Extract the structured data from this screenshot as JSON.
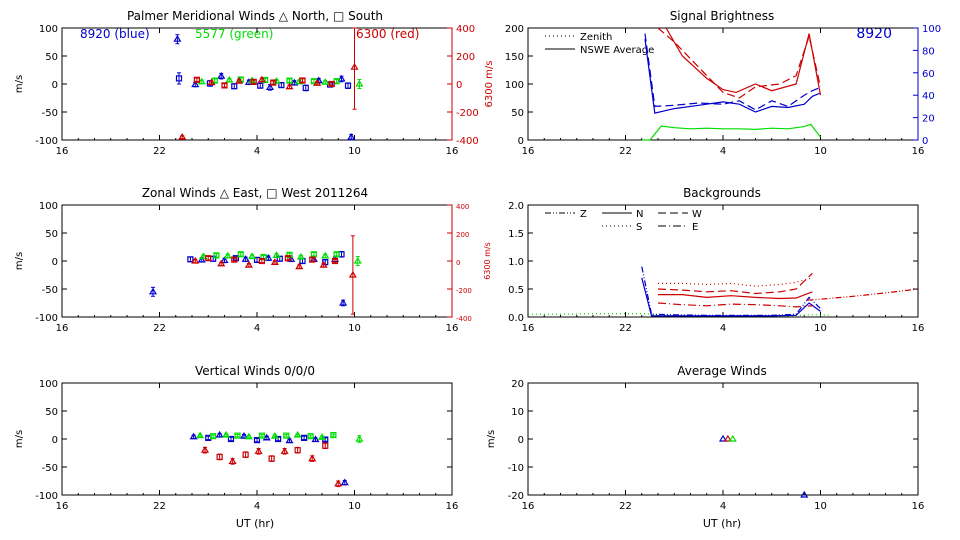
{
  "colors": {
    "blue": "#0000cc",
    "green": "#00dd00",
    "red": "#cc0000",
    "axis": "#000000"
  },
  "chart_data": [
    {
      "id": "meridional",
      "type": "scatter",
      "title": "Palmer Meridional Winds △ North, □ South",
      "ylabel": "m/s",
      "ylabel_right": "6300 m/s",
      "ylim": [
        -100,
        100
      ],
      "ylim_right": [
        -400,
        400
      ],
      "yticks": [
        -100,
        -50,
        0,
        50,
        100
      ],
      "yticks_right": [
        -400,
        -200,
        0,
        200,
        400
      ],
      "xlim": [
        16,
        40
      ],
      "xticks": [
        16,
        22,
        28,
        34,
        40
      ],
      "xtick_labels": [
        "16",
        "22",
        "4",
        "10",
        "16"
      ],
      "legend": [
        {
          "text": "8920 (blue)",
          "color": "blue"
        },
        {
          "text": "5577 (green)",
          "color": "green"
        },
        {
          "text": "6300 (red)",
          "color": "red"
        }
      ],
      "series": [
        {
          "name": "8920",
          "color": "blue",
          "x": [
            23.1,
            23.2,
            24.2,
            25.1,
            25.8,
            26.6,
            27.5,
            28.2,
            28.8,
            29.5,
            30.3,
            31.0,
            31.8,
            32.5,
            33.2,
            33.6,
            33.8
          ],
          "y": [
            80,
            10,
            -1,
            1,
            14,
            -4,
            3,
            -3,
            -6,
            -2,
            2,
            -7,
            6,
            -1,
            9,
            -3,
            -95
          ],
          "err": [
            8,
            10,
            4,
            5,
            5,
            4,
            4,
            4,
            5,
            4,
            4,
            5,
            4,
            4,
            5,
            5,
            5
          ]
        },
        {
          "name": "5577",
          "color": "green",
          "x": [
            24.6,
            25.4,
            26.3,
            27.0,
            27.7,
            28.5,
            29.2,
            30.0,
            30.6,
            31.5,
            32.2,
            32.9,
            34.3
          ],
          "y": [
            4,
            6,
            7,
            8,
            6,
            7,
            5,
            6,
            4,
            5,
            3,
            5,
            0
          ],
          "err": [
            3,
            3,
            3,
            3,
            3,
            3,
            3,
            3,
            3,
            3,
            3,
            3,
            8
          ]
        },
        {
          "name": "6300",
          "color": "red",
          "x": [
            23.4,
            24.3,
            25.2,
            26.0,
            26.9,
            27.8,
            28.3,
            29.0,
            30.0,
            30.8,
            31.7,
            32.6,
            34.0
          ],
          "y": [
            -380,
            30,
            10,
            -10,
            20,
            15,
            30,
            10,
            -20,
            25,
            5,
            0,
            120
          ],
          "err": [
            10,
            12,
            12,
            12,
            12,
            12,
            12,
            12,
            12,
            12,
            12,
            12,
            300
          ],
          "axis": "right"
        }
      ]
    },
    {
      "id": "zonal",
      "type": "scatter",
      "title": "Zonal Winds △ East, □ West 2011264",
      "ylabel": "m/s",
      "ylabel_right": "6300 m/s",
      "ylim": [
        -100,
        100
      ],
      "ylim_right": [
        -400,
        400
      ],
      "yticks": [
        -100,
        -50,
        0,
        50,
        100
      ],
      "yticks_right": [
        -400,
        -200,
        0,
        200,
        400
      ],
      "xlim": [
        16,
        40
      ],
      "xticks": [
        16,
        22,
        28,
        34,
        40
      ],
      "xtick_labels": [
        "16",
        "22",
        "4",
        "10",
        "16"
      ],
      "series": [
        {
          "name": "8920",
          "color": "blue",
          "x": [
            21.6,
            23.9,
            24.6,
            25.3,
            26.0,
            26.7,
            27.3,
            28.0,
            28.7,
            29.4,
            30.1,
            30.8,
            31.5,
            32.2,
            32.8,
            33.2,
            33.3
          ],
          "y": [
            -55,
            3,
            2,
            4,
            1,
            5,
            3,
            2,
            5,
            4,
            3,
            0,
            3,
            -2,
            3,
            12,
            -75
          ],
          "err": [
            8,
            4,
            4,
            4,
            4,
            4,
            4,
            4,
            4,
            4,
            4,
            4,
            4,
            4,
            4,
            5,
            5
          ]
        },
        {
          "name": "5577",
          "color": "green",
          "x": [
            24.7,
            25.5,
            26.2,
            27.0,
            27.7,
            28.4,
            29.2,
            30.0,
            30.7,
            31.5,
            32.2,
            32.9,
            34.2
          ],
          "y": [
            8,
            10,
            9,
            12,
            8,
            7,
            10,
            11,
            7,
            12,
            9,
            12,
            0
          ],
          "err": [
            3,
            3,
            3,
            3,
            3,
            3,
            3,
            3,
            3,
            3,
            3,
            3,
            8
          ]
        },
        {
          "name": "6300",
          "color": "red",
          "x": [
            24.2,
            25.0,
            25.8,
            26.6,
            27.5,
            28.3,
            29.1,
            29.9,
            30.6,
            31.4,
            32.1,
            32.8,
            33.9
          ],
          "y": [
            0,
            20,
            -20,
            10,
            -30,
            0,
            -10,
            20,
            -40,
            10,
            -30,
            0,
            -100
          ],
          "err": [
            12,
            12,
            12,
            12,
            12,
            12,
            12,
            12,
            12,
            12,
            12,
            12,
            280
          ],
          "axis": "right"
        }
      ]
    },
    {
      "id": "vertical",
      "type": "scatter",
      "title": "Vertical Winds 0/0/0",
      "ylabel": "m/s",
      "xlabel": "UT (hr)",
      "ylim": [
        -100,
        100
      ],
      "yticks": [
        -100,
        -50,
        0,
        50,
        100
      ],
      "xlim": [
        16,
        40
      ],
      "xticks": [
        16,
        22,
        28,
        34,
        40
      ],
      "xtick_labels": [
        "16",
        "22",
        "4",
        "10",
        "16"
      ],
      "series": [
        {
          "name": "8920",
          "color": "blue",
          "x": [
            24.1,
            25.0,
            25.7,
            26.4,
            27.2,
            28.0,
            28.6,
            29.3,
            30.0,
            30.9,
            31.6,
            32.2,
            33.4
          ],
          "y": [
            4,
            2,
            7,
            0,
            5,
            -2,
            2,
            0,
            -3,
            2,
            -1,
            -1,
            -78
          ],
          "err": [
            3,
            3,
            3,
            3,
            3,
            3,
            3,
            3,
            3,
            3,
            3,
            3,
            4
          ]
        },
        {
          "name": "5577",
          "color": "green",
          "x": [
            24.5,
            25.3,
            26.1,
            26.8,
            27.5,
            28.3,
            29.1,
            29.8,
            30.5,
            31.3,
            32.0,
            32.7,
            34.3
          ],
          "y": [
            6,
            5,
            7,
            6,
            4,
            6,
            5,
            6,
            7,
            5,
            3,
            7,
            0
          ],
          "err": [
            2,
            2,
            2,
            2,
            2,
            2,
            2,
            2,
            2,
            2,
            2,
            2,
            6
          ]
        },
        {
          "name": "6300",
          "color": "red",
          "x": [
            24.8,
            25.7,
            26.5,
            27.3,
            28.1,
            28.9,
            29.7,
            30.5,
            31.4,
            32.2,
            33.0
          ],
          "y": [
            -20,
            -32,
            -40,
            -28,
            -22,
            -35,
            -22,
            -20,
            -35,
            -12,
            -80
          ],
          "err": [
            5,
            5,
            5,
            5,
            5,
            5,
            5,
            5,
            5,
            5,
            5
          ]
        }
      ]
    },
    {
      "id": "brightness",
      "type": "line",
      "title": "Signal Brightness",
      "ylim": [
        0,
        200
      ],
      "ylim_right": [
        0,
        100
      ],
      "yticks": [
        0,
        50,
        100,
        150,
        200
      ],
      "yticks_right": [
        0,
        20,
        40,
        60,
        80,
        100
      ],
      "xlim": [
        16,
        40
      ],
      "xticks": [
        16,
        22,
        28,
        34,
        40
      ],
      "xtick_labels": [
        "16",
        "22",
        "4",
        "10",
        "16"
      ],
      "label_right": "8920",
      "legend": [
        {
          "text": "Zenith",
          "style": "dotted"
        },
        {
          "text": "NSWE Average",
          "style": "solid"
        }
      ],
      "series": [
        {
          "name": "8920 zenith",
          "color": "blue",
          "style": "dashed",
          "axis": "right",
          "x": [
            23.2,
            23.8,
            25.0,
            26.5,
            28.0,
            29.0,
            30.0,
            31.0,
            32.0,
            33.0,
            33.5,
            34.0
          ],
          "y": [
            95,
            30,
            31,
            33,
            32,
            35,
            27,
            35,
            30,
            40,
            44,
            47
          ]
        },
        {
          "name": "8920 average",
          "color": "blue",
          "style": "solid",
          "axis": "right",
          "x": [
            23.2,
            23.8,
            25.0,
            26.5,
            28.0,
            29.0,
            30.0,
            31.0,
            32.0,
            33.0,
            33.5,
            34.0
          ],
          "y": [
            90,
            24,
            28,
            31,
            34,
            32,
            25,
            30,
            29,
            32,
            39,
            42
          ]
        },
        {
          "name": "6300 zenith",
          "color": "red",
          "style": "dashed",
          "x": [
            24.0,
            25.0,
            27.0,
            28.0,
            29.0,
            30.0,
            31.5,
            32.5,
            33.3,
            34.0
          ],
          "y": [
            200,
            175,
            115,
            85,
            75,
            95,
            100,
            115,
            185,
            95
          ]
        },
        {
          "name": "6300 average",
          "color": "red",
          "style": "solid",
          "x": [
            24.5,
            25.5,
            27.0,
            28.0,
            28.8,
            30.0,
            31.0,
            32.5,
            33.3,
            34.0
          ],
          "y": [
            200,
            150,
            110,
            90,
            85,
            100,
            88,
            100,
            190,
            80
          ]
        },
        {
          "name": "5577 average",
          "color": "green",
          "style": "solid",
          "x": [
            23.0,
            23.5,
            24.2,
            25.0,
            26.0,
            27.0,
            28.0,
            29.0,
            30.0,
            31.0,
            32.0,
            33.0,
            33.4,
            34.0
          ],
          "y": [
            0,
            0,
            25,
            22,
            20,
            21,
            20,
            20,
            19,
            21,
            20,
            24,
            28,
            5
          ]
        }
      ]
    },
    {
      "id": "backgrounds",
      "type": "line",
      "title": "Backgrounds",
      "ylim": [
        0,
        2
      ],
      "yticks": [
        0.0,
        0.5,
        1.0,
        1.5,
        2.0
      ],
      "ytick_labels": [
        "0.0",
        "0.5",
        "1.0",
        "1.5",
        "2.0"
      ],
      "xlim": [
        16,
        40
      ],
      "xticks": [
        16,
        22,
        28,
        34,
        40
      ],
      "xtick_labels": [
        "16",
        "22",
        "4",
        "10",
        "16"
      ],
      "legend": [
        {
          "text": "Z",
          "style": "dashdotdot"
        },
        {
          "text": "N",
          "style": "solid"
        },
        {
          "text": "W",
          "style": "dashed"
        },
        {
          "text": "S",
          "style": "dotted"
        },
        {
          "text": "E",
          "style": "dashdot"
        }
      ],
      "series": [
        {
          "name": "green Z",
          "color": "green",
          "style": "dotted",
          "x": [
            16,
            18,
            20,
            22,
            23.2,
            24.0,
            26,
            28,
            30,
            32,
            33.5,
            34.5
          ],
          "y": [
            0.05,
            0.05,
            0.06,
            0.06,
            0.06,
            0.03,
            0.02,
            0.02,
            0.02,
            0.02,
            0.04,
            0.03
          ]
        },
        {
          "name": "blue Z",
          "color": "blue",
          "style": "dashdotdot",
          "x": [
            23.0,
            23.6,
            25.0,
            27.0,
            29.0,
            31.0,
            32.5,
            33.3,
            34.0
          ],
          "y": [
            0.9,
            0.05,
            0.04,
            0.03,
            0.03,
            0.03,
            0.05,
            0.35,
            0.15
          ]
        },
        {
          "name": "blue N",
          "color": "blue",
          "style": "solid",
          "x": [
            23.0,
            23.6,
            25.0,
            27.0,
            29.0,
            31.0,
            32.5,
            33.3,
            34.0
          ],
          "y": [
            0.7,
            0.02,
            0.02,
            0.02,
            0.02,
            0.02,
            0.03,
            0.25,
            0.1
          ]
        },
        {
          "name": "red N",
          "color": "red",
          "style": "solid",
          "x": [
            24.0,
            25.5,
            27.0,
            28.5,
            30.0,
            31.5,
            32.5,
            33.5
          ],
          "y": [
            0.4,
            0.4,
            0.35,
            0.38,
            0.35,
            0.33,
            0.34,
            0.45
          ]
        },
        {
          "name": "red W",
          "color": "red",
          "style": "dashed",
          "x": [
            24.0,
            25.5,
            27.0,
            28.5,
            30.0,
            31.5,
            32.5,
            33.5
          ],
          "y": [
            0.5,
            0.48,
            0.45,
            0.47,
            0.42,
            0.45,
            0.5,
            0.78
          ]
        },
        {
          "name": "red S",
          "color": "red",
          "style": "dotted",
          "x": [
            24.0,
            25.5,
            27.0,
            28.5,
            30.0,
            31.5,
            32.5,
            33.5
          ],
          "y": [
            0.6,
            0.6,
            0.58,
            0.6,
            0.55,
            0.58,
            0.62,
            0.7
          ]
        },
        {
          "name": "red E",
          "color": "red",
          "style": "dashdot",
          "x": [
            24.0,
            25.5,
            27.0,
            28.5,
            30.0,
            31.5,
            32.5,
            33.5
          ],
          "y": [
            0.25,
            0.22,
            0.2,
            0.23,
            0.22,
            0.2,
            0.18,
            0.2
          ]
        },
        {
          "name": "red Z",
          "color": "red",
          "style": "dashdotdot",
          "x": [
            33.2,
            34.5,
            36.0,
            38.0,
            40.0
          ],
          "y": [
            0.3,
            0.33,
            0.37,
            0.43,
            0.5
          ]
        }
      ]
    },
    {
      "id": "average",
      "type": "scatter",
      "title": "Average Winds",
      "ylabel": "m/s",
      "xlabel": "UT (hr)",
      "ylim": [
        -20,
        20
      ],
      "yticks": [
        -20,
        -10,
        0,
        10,
        20
      ],
      "xlim": [
        16,
        40
      ],
      "xticks": [
        16,
        22,
        28,
        34,
        40
      ],
      "xtick_labels": [
        "16",
        "22",
        "4",
        "10",
        "16"
      ],
      "series": [
        {
          "name": "8920",
          "color": "blue",
          "x": [
            28.0,
            33.0
          ],
          "y": [
            0,
            -20
          ],
          "err": [
            0,
            0
          ]
        },
        {
          "name": "6300",
          "color": "red",
          "x": [
            28.3
          ],
          "y": [
            0
          ],
          "err": [
            0
          ]
        },
        {
          "name": "5577",
          "color": "green",
          "x": [
            28.6
          ],
          "y": [
            0
          ],
          "err": [
            0
          ]
        }
      ]
    }
  ]
}
